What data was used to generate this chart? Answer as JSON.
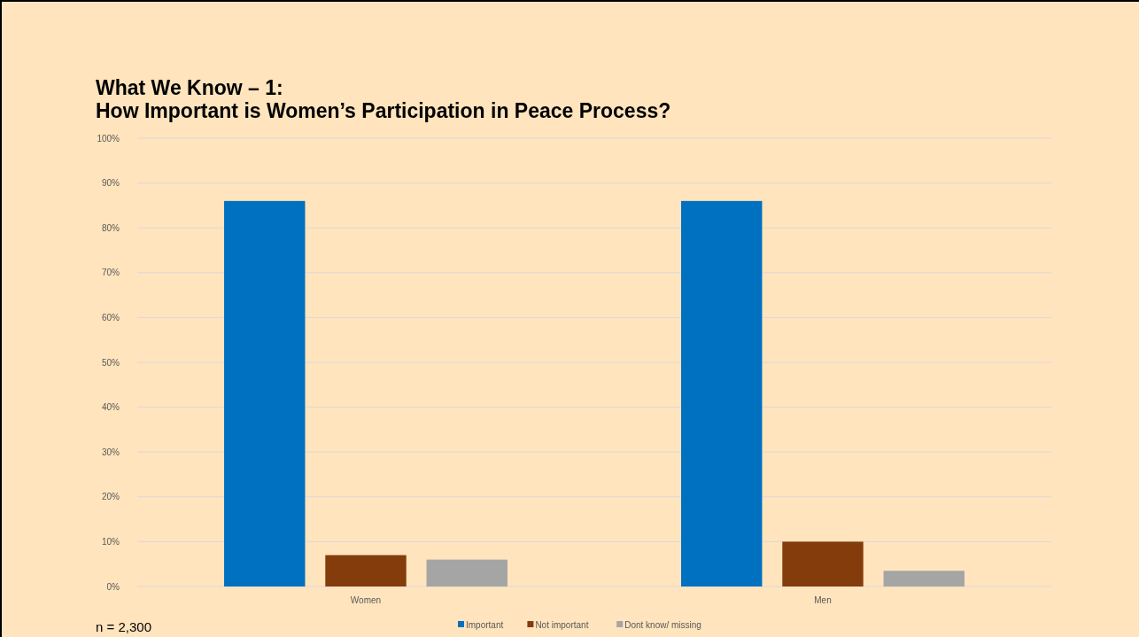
{
  "chart_data": {
    "type": "bar",
    "title": "What We Know – 1:\nHow Important is Women’s Participation in Peace Process?",
    "categories": [
      "Women",
      "Men"
    ],
    "series": [
      {
        "name": "Important",
        "color": "#0070c0",
        "values": [
          86,
          86
        ]
      },
      {
        "name": "Not important",
        "color": "#843c0c",
        "values": [
          7,
          10
        ]
      },
      {
        "name": "Dont know/ missing",
        "color": "#a5a5a5",
        "values": [
          6,
          3.5
        ]
      }
    ],
    "ylim": [
      0,
      100
    ],
    "yticks": [
      {
        "value": 0,
        "label": "0%"
      },
      {
        "value": 10,
        "label": "10%"
      },
      {
        "value": 20,
        "label": "20%"
      },
      {
        "value": 30,
        "label": "30%"
      },
      {
        "value": 40,
        "label": "40%"
      },
      {
        "value": 50,
        "label": "50%"
      },
      {
        "value": 60,
        "label": "60%"
      },
      {
        "value": 70,
        "label": "70%"
      },
      {
        "value": 80,
        "label": "80%"
      },
      {
        "value": 90,
        "label": "90%"
      },
      {
        "value": 100,
        "label": "100%"
      }
    ],
    "grid": "y",
    "legend": "bottom",
    "annotations": [
      "n = 2,300"
    ]
  }
}
